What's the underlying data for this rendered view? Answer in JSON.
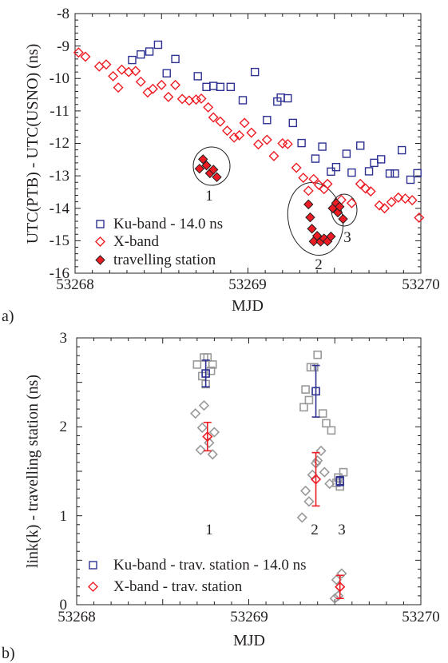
{
  "chart_data": [
    {
      "panel_label": "a)",
      "type": "scatter",
      "xlabel": "MJD",
      "ylabel": "UTC(PTB) - UTC(USNO) (ns)",
      "xlim": [
        53268,
        53270
      ],
      "ylim": [
        -16,
        -8
      ],
      "x_ticks": [
        "53268",
        "53269",
        "53270"
      ],
      "y_ticks": [
        "-8",
        "-9",
        "-10",
        "-11",
        "-12",
        "-13",
        "-14",
        "-15",
        "-16"
      ],
      "grid": false,
      "legend_position": "bottom-left",
      "series": [
        {
          "name": "Ku-band - 14.0 ns",
          "marker": "open-square",
          "color": "#2e3192",
          "points": [
            [
              53268.33,
              -9.43
            ],
            [
              53268.38,
              -9.26
            ],
            [
              53268.43,
              -9.17
            ],
            [
              53268.48,
              -8.96
            ],
            [
              53268.53,
              -9.84
            ],
            [
              53268.58,
              -9.4
            ],
            [
              53268.71,
              -9.93
            ],
            [
              53268.76,
              -10.26
            ],
            [
              53268.8,
              -10.23
            ],
            [
              53268.84,
              -10.26
            ],
            [
              53268.9,
              -10.26
            ],
            [
              53268.97,
              -10.67
            ],
            [
              53269.04,
              -9.8
            ],
            [
              53269.11,
              -11.28
            ],
            [
              53269.17,
              -10.71
            ],
            [
              53269.19,
              -10.59
            ],
            [
              53269.23,
              -10.61
            ],
            [
              53269.26,
              -11.37
            ],
            [
              53269.31,
              -11.99
            ],
            [
              53269.39,
              -12.47
            ],
            [
              53269.43,
              -12.1
            ],
            [
              53269.48,
              -12.87
            ],
            [
              53269.51,
              -12.73
            ],
            [
              53269.57,
              -12.32
            ],
            [
              53269.6,
              -12.9
            ],
            [
              53269.65,
              -12.07
            ],
            [
              53269.7,
              -12.86
            ],
            [
              53269.73,
              -12.6
            ],
            [
              53269.77,
              -12.49
            ],
            [
              53269.82,
              -12.93
            ],
            [
              53269.85,
              -12.93
            ],
            [
              53269.89,
              -12.21
            ],
            [
              53269.94,
              -13.12
            ],
            [
              53269.98,
              -12.92
            ]
          ]
        },
        {
          "name": "X-band",
          "marker": "open-diamond",
          "color": "#ed1c24",
          "points": [
            [
              53268.02,
              -9.2
            ],
            [
              53268.06,
              -9.33
            ],
            [
              53268.14,
              -9.63
            ],
            [
              53268.18,
              -9.57
            ],
            [
              53268.22,
              -9.93
            ],
            [
              53268.25,
              -10.28
            ],
            [
              53268.27,
              -9.73
            ],
            [
              53268.31,
              -9.8
            ],
            [
              53268.35,
              -9.77
            ],
            [
              53268.38,
              -10.1
            ],
            [
              53268.42,
              -10.43
            ],
            [
              53268.45,
              -10.32
            ],
            [
              53268.5,
              -10.2
            ],
            [
              53268.54,
              -10.57
            ],
            [
              53268.58,
              -10.2
            ],
            [
              53268.62,
              -10.63
            ],
            [
              53268.66,
              -10.68
            ],
            [
              53268.7,
              -10.65
            ],
            [
              53268.73,
              -10.62
            ],
            [
              53268.77,
              -10.89
            ],
            [
              53268.8,
              -11.2
            ],
            [
              53268.84,
              -11.33
            ],
            [
              53268.88,
              -11.61
            ],
            [
              53268.92,
              -11.82
            ],
            [
              53268.95,
              -11.75
            ],
            [
              53268.98,
              -11.37
            ],
            [
              53269.02,
              -11.67
            ],
            [
              53269.06,
              -12.03
            ],
            [
              53269.11,
              -11.89
            ],
            [
              53269.15,
              -12.39
            ],
            [
              53269.2,
              -12.0
            ],
            [
              53269.23,
              -12.02
            ],
            [
              53269.28,
              -12.75
            ],
            [
              53269.32,
              -13.06
            ],
            [
              53269.35,
              -13.46
            ],
            [
              53269.38,
              -13.1
            ],
            [
              53269.41,
              -13.28
            ],
            [
              53269.44,
              -13.41
            ],
            [
              53269.46,
              -13.25
            ],
            [
              53269.54,
              -13.74
            ],
            [
              53269.6,
              -13.84
            ],
            [
              53269.65,
              -13.25
            ],
            [
              53269.68,
              -13.39
            ],
            [
              53269.71,
              -13.48
            ],
            [
              53269.76,
              -13.91
            ],
            [
              53269.79,
              -14.0
            ],
            [
              53269.83,
              -13.81
            ],
            [
              53269.87,
              -13.67
            ],
            [
              53269.91,
              -13.7
            ],
            [
              53269.95,
              -13.75
            ],
            [
              53269.99,
              -14.29
            ]
          ]
        },
        {
          "name": "travelling station",
          "marker": "filled-diamond",
          "color": "#ed1c24",
          "points": [
            [
              53268.72,
              -12.78
            ],
            [
              53268.74,
              -12.49
            ],
            [
              53268.76,
              -12.68
            ],
            [
              53268.78,
              -12.92
            ],
            [
              53268.8,
              -12.81
            ],
            [
              53268.82,
              -13.04
            ],
            [
              53269.35,
              -13.88
            ],
            [
              53269.36,
              -14.28
            ],
            [
              53269.37,
              -14.63
            ],
            [
              53269.38,
              -15.02
            ],
            [
              53269.4,
              -14.85
            ],
            [
              53269.42,
              -15.03
            ],
            [
              53269.44,
              -14.93
            ],
            [
              53269.46,
              -15.02
            ],
            [
              53269.48,
              -14.87
            ],
            [
              53269.49,
              -14.0
            ],
            [
              53269.51,
              -13.84
            ],
            [
              53269.52,
              -14.13
            ],
            [
              53269.53,
              -13.95
            ],
            [
              53269.55,
              -14.33
            ]
          ]
        }
      ],
      "annotations": [
        "1",
        "2",
        "3"
      ]
    },
    {
      "panel_label": "b)",
      "type": "scatter",
      "xlabel": "MJD",
      "ylabel": "link(k) - travelling station (ns)",
      "xlim": [
        53268,
        53270
      ],
      "ylim": [
        0,
        3
      ],
      "x_ticks": [
        "53268",
        "53269",
        "53270"
      ],
      "y_ticks": [
        "0",
        "1",
        "2",
        "3"
      ],
      "grid": false,
      "legend_position": "bottom-left",
      "series": [
        {
          "name": "Ku-band - trav. station - 14.0 ns",
          "marker": "open-square",
          "color": "#2e3192",
          "mean_points": [
            {
              "x": 53268.75,
              "y": 2.6,
              "err": 0.15
            },
            {
              "x": 53269.39,
              "y": 2.4,
              "err": 0.29
            },
            {
              "x": 53269.53,
              "y": 1.39,
              "err": 0.05
            }
          ],
          "individual_points": [
            [
              53268.7,
              2.7
            ],
            [
              53268.73,
              2.57
            ],
            [
              53268.74,
              2.78
            ],
            [
              53268.75,
              2.48
            ],
            [
              53268.76,
              2.78
            ],
            [
              53268.78,
              2.63
            ],
            [
              53268.79,
              2.7
            ],
            [
              53269.32,
              2.22
            ],
            [
              53269.33,
              2.42
            ],
            [
              53269.35,
              2.3
            ],
            [
              53269.36,
              2.67
            ],
            [
              53269.38,
              2.67
            ],
            [
              53269.4,
              2.81
            ],
            [
              53269.43,
              2.15
            ],
            [
              53269.45,
              2.04
            ],
            [
              53269.48,
              1.96
            ],
            [
              53269.51,
              1.37
            ],
            [
              53269.52,
              1.43
            ],
            [
              53269.53,
              1.33
            ],
            [
              53269.55,
              1.49
            ]
          ]
        },
        {
          "name": "X-band - trav. station",
          "marker": "open-diamond",
          "color": "#ed1c24",
          "mean_points": [
            {
              "x": 53268.76,
              "y": 1.89,
              "err": 0.16
            },
            {
              "x": 53269.39,
              "y": 1.41,
              "err": 0.3
            },
            {
              "x": 53269.53,
              "y": 0.2,
              "err": 0.13
            }
          ],
          "individual_points": [
            [
              53268.69,
              2.15
            ],
            [
              53268.72,
              1.74
            ],
            [
              53268.73,
              1.99
            ],
            [
              53268.74,
              2.24
            ],
            [
              53268.77,
              1.82
            ],
            [
              53268.79,
              1.69
            ],
            [
              53268.8,
              1.94
            ],
            [
              53269.31,
              0.98
            ],
            [
              53269.33,
              1.28
            ],
            [
              53269.35,
              1.16
            ],
            [
              53269.37,
              1.46
            ],
            [
              53269.39,
              1.59
            ],
            [
              53269.4,
              1.62
            ],
            [
              53269.42,
              1.73
            ],
            [
              53269.44,
              1.49
            ],
            [
              53269.47,
              1.36
            ],
            [
              53269.5,
              0.07
            ],
            [
              53269.51,
              0.28
            ],
            [
              53269.52,
              0.1
            ],
            [
              53269.54,
              0.35
            ]
          ]
        }
      ],
      "annotations": [
        "1",
        "2",
        "3"
      ]
    }
  ]
}
